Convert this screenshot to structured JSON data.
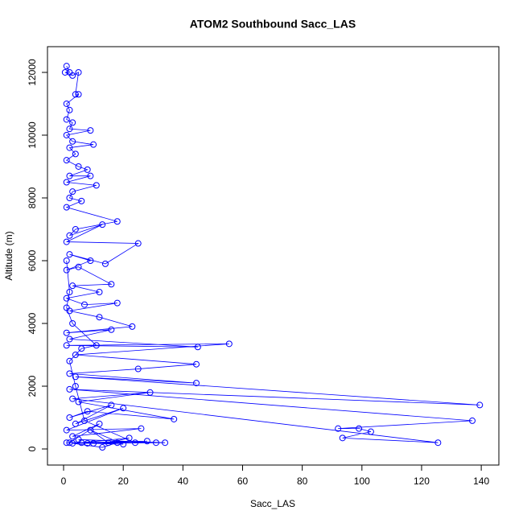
{
  "chart_data": {
    "type": "line",
    "title": "ATOM2 Southbound Sacc_LAS",
    "xlabel": "Sacc_LAS",
    "ylabel": "Altitude (m)",
    "xlim": [
      -5.4,
      145.9
    ],
    "ylim": [
      -513,
      12820
    ],
    "xticks": [
      0,
      20,
      40,
      60,
      80,
      100,
      120,
      140
    ],
    "yticks": [
      0,
      2000,
      4000,
      6000,
      8000,
      10000,
      12000
    ],
    "series": [
      {
        "name": "Sacc_LAS",
        "color": "#0000ff",
        "x": [
          1,
          2,
          0.5,
          3,
          5,
          4,
          5,
          1,
          2,
          1,
          3,
          2,
          9,
          1,
          3,
          10,
          2,
          4,
          1,
          5,
          8,
          2,
          9,
          1,
          11,
          3,
          2,
          6,
          1,
          18,
          4,
          2,
          13,
          1,
          25,
          14,
          2,
          9,
          1,
          5,
          16,
          3,
          12,
          1,
          7,
          18,
          2,
          12,
          23,
          1,
          16,
          2,
          45,
          1,
          55.5,
          4,
          44.5,
          25,
          2,
          44.5,
          4,
          139.5,
          2,
          137,
          92,
          99,
          103,
          93.5,
          125.5,
          3,
          29,
          5,
          37,
          8,
          2,
          16,
          4,
          20,
          1,
          26,
          3,
          12,
          2,
          31,
          5,
          34,
          8,
          20,
          9,
          15,
          22,
          6,
          28,
          10,
          3,
          13,
          18,
          1,
          24,
          7,
          4,
          2,
          6,
          11,
          3,
          1,
          2,
          1
        ],
        "values": [
          12200,
          12000,
          12000,
          11900,
          12000,
          11300,
          11300,
          11000,
          10800,
          10500,
          10400,
          10200,
          10150,
          10000,
          9800,
          9700,
          9600,
          9400,
          9200,
          9000,
          8900,
          8700,
          8700,
          8500,
          8400,
          8200,
          8000,
          7900,
          7700,
          7250,
          7000,
          6800,
          7150,
          6600,
          6550,
          5900,
          6200,
          6000,
          5700,
          5800,
          5250,
          5200,
          5000,
          4800,
          4600,
          4650,
          4400,
          4200,
          3900,
          3700,
          3800,
          3500,
          3250,
          3300,
          3350,
          3000,
          2700,
          2550,
          2400,
          2100,
          2300,
          1400,
          1900,
          900,
          650,
          650,
          550,
          350,
          200,
          1600,
          1800,
          1500,
          950,
          1200,
          1000,
          1400,
          800,
          1300,
          600,
          650,
          400,
          800,
          200,
          200,
          300,
          200,
          180,
          150,
          600,
          200,
          350,
          200,
          250,
          180,
          180,
          50,
          200,
          200,
          200,
          900,
          2000,
          2800,
          3200,
          3300,
          4000,
          4500,
          5000,
          6000
        ]
      }
    ]
  }
}
